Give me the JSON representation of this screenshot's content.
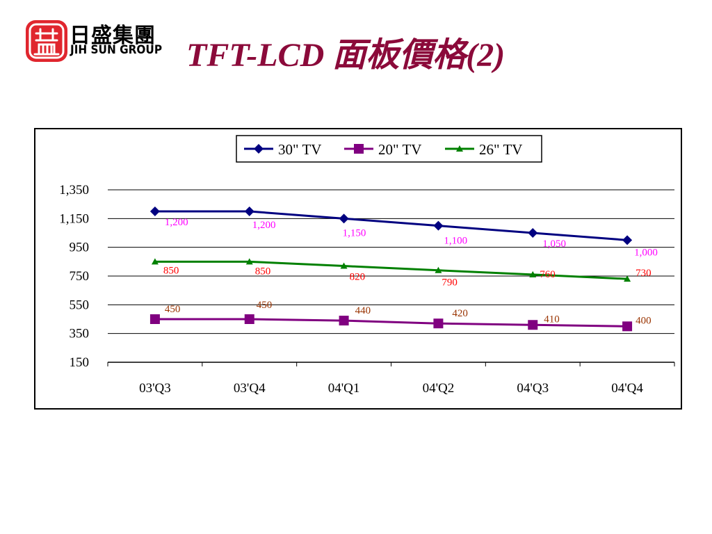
{
  "header": {
    "logo_cn": "日盛集團",
    "logo_en": "JIH SUN GROUP",
    "title": "TFT-LCD 面板價格(2)"
  },
  "colors": {
    "title": "#8b0a3a",
    "logo_red": "#e0262e",
    "series_30": "#000080",
    "series_20": "#800080",
    "series_26": "#008000",
    "label_30": "#ff00ff",
    "label_20": "#993300",
    "label_26": "#ff0000"
  },
  "chart_data": {
    "type": "line",
    "title": "",
    "xlabel": "",
    "ylabel": "",
    "categories": [
      "03'Q3",
      "03'Q4",
      "04'Q1",
      "04'Q2",
      "04'Q3",
      "04'Q4"
    ],
    "ylim": [
      150,
      1350
    ],
    "yticks": [
      150,
      350,
      550,
      750,
      950,
      1150,
      1350
    ],
    "ytick_labels": [
      "150",
      "350",
      "550",
      "750",
      "950",
      "1,150",
      "1,350"
    ],
    "grid": true,
    "legend_position": "top",
    "series": [
      {
        "name": "30\" TV",
        "marker": "diamond",
        "values": [
          1200,
          1200,
          1150,
          1100,
          1050,
          1000
        ],
        "labels": [
          "1,200",
          "1,200",
          "1,150",
          "1,100",
          "1,050",
          "1,000"
        ]
      },
      {
        "name": "20\" TV",
        "marker": "square",
        "values": [
          450,
          450,
          440,
          420,
          410,
          400
        ],
        "labels": [
          "450",
          "450",
          "440",
          "420",
          "410",
          "400"
        ]
      },
      {
        "name": "26\" TV",
        "marker": "triangle",
        "values": [
          850,
          850,
          820,
          790,
          760,
          730
        ],
        "labels": [
          "850",
          "850",
          "820",
          "790",
          "760",
          "730"
        ]
      }
    ]
  }
}
